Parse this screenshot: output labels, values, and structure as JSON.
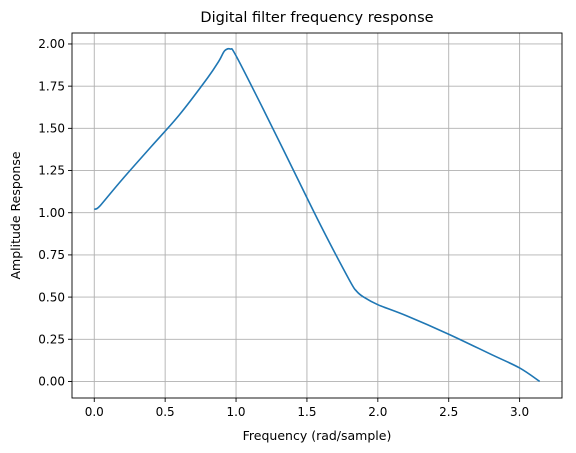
{
  "chart_data": {
    "type": "line",
    "title": "Digital filter frequency response",
    "xlabel": "Frequency (rad/sample)",
    "ylabel": "Amplitude Response",
    "xlim": [
      -0.157,
      3.299
    ],
    "ylim": [
      -0.098,
      2.065
    ],
    "grid": true,
    "x_ticks": [
      0.0,
      0.5,
      1.0,
      1.5,
      2.0,
      2.5,
      3.0
    ],
    "x_tick_labels": [
      "0.0",
      "0.5",
      "1.0",
      "1.5",
      "2.0",
      "2.5",
      "3.0"
    ],
    "y_ticks": [
      0.0,
      0.25,
      0.5,
      0.75,
      1.0,
      1.25,
      1.5,
      1.75,
      2.0
    ],
    "y_tick_labels": [
      "0.00",
      "0.25",
      "0.50",
      "0.75",
      "1.00",
      "1.25",
      "1.50",
      "1.75",
      "2.00"
    ],
    "series": [
      {
        "color": "#1f77b4",
        "x": [
          0.0,
          0.02,
          0.04,
          0.08,
          0.2,
          0.4,
          0.6,
          0.8,
          0.88,
          0.92,
          0.96,
          1.0,
          1.2,
          1.4,
          1.6,
          1.8,
          1.85,
          1.9,
          2.0,
          2.2,
          2.5,
          2.8,
          3.0,
          3.1416
        ],
        "y": [
          1.02,
          1.025,
          1.04,
          1.08,
          1.2,
          1.39,
          1.58,
          1.8,
          1.9,
          1.96,
          1.97,
          1.93,
          1.6,
          1.26,
          0.92,
          0.6,
          0.535,
          0.5,
          0.455,
          0.39,
          0.28,
          0.16,
          0.08,
          0.0
        ]
      }
    ]
  }
}
